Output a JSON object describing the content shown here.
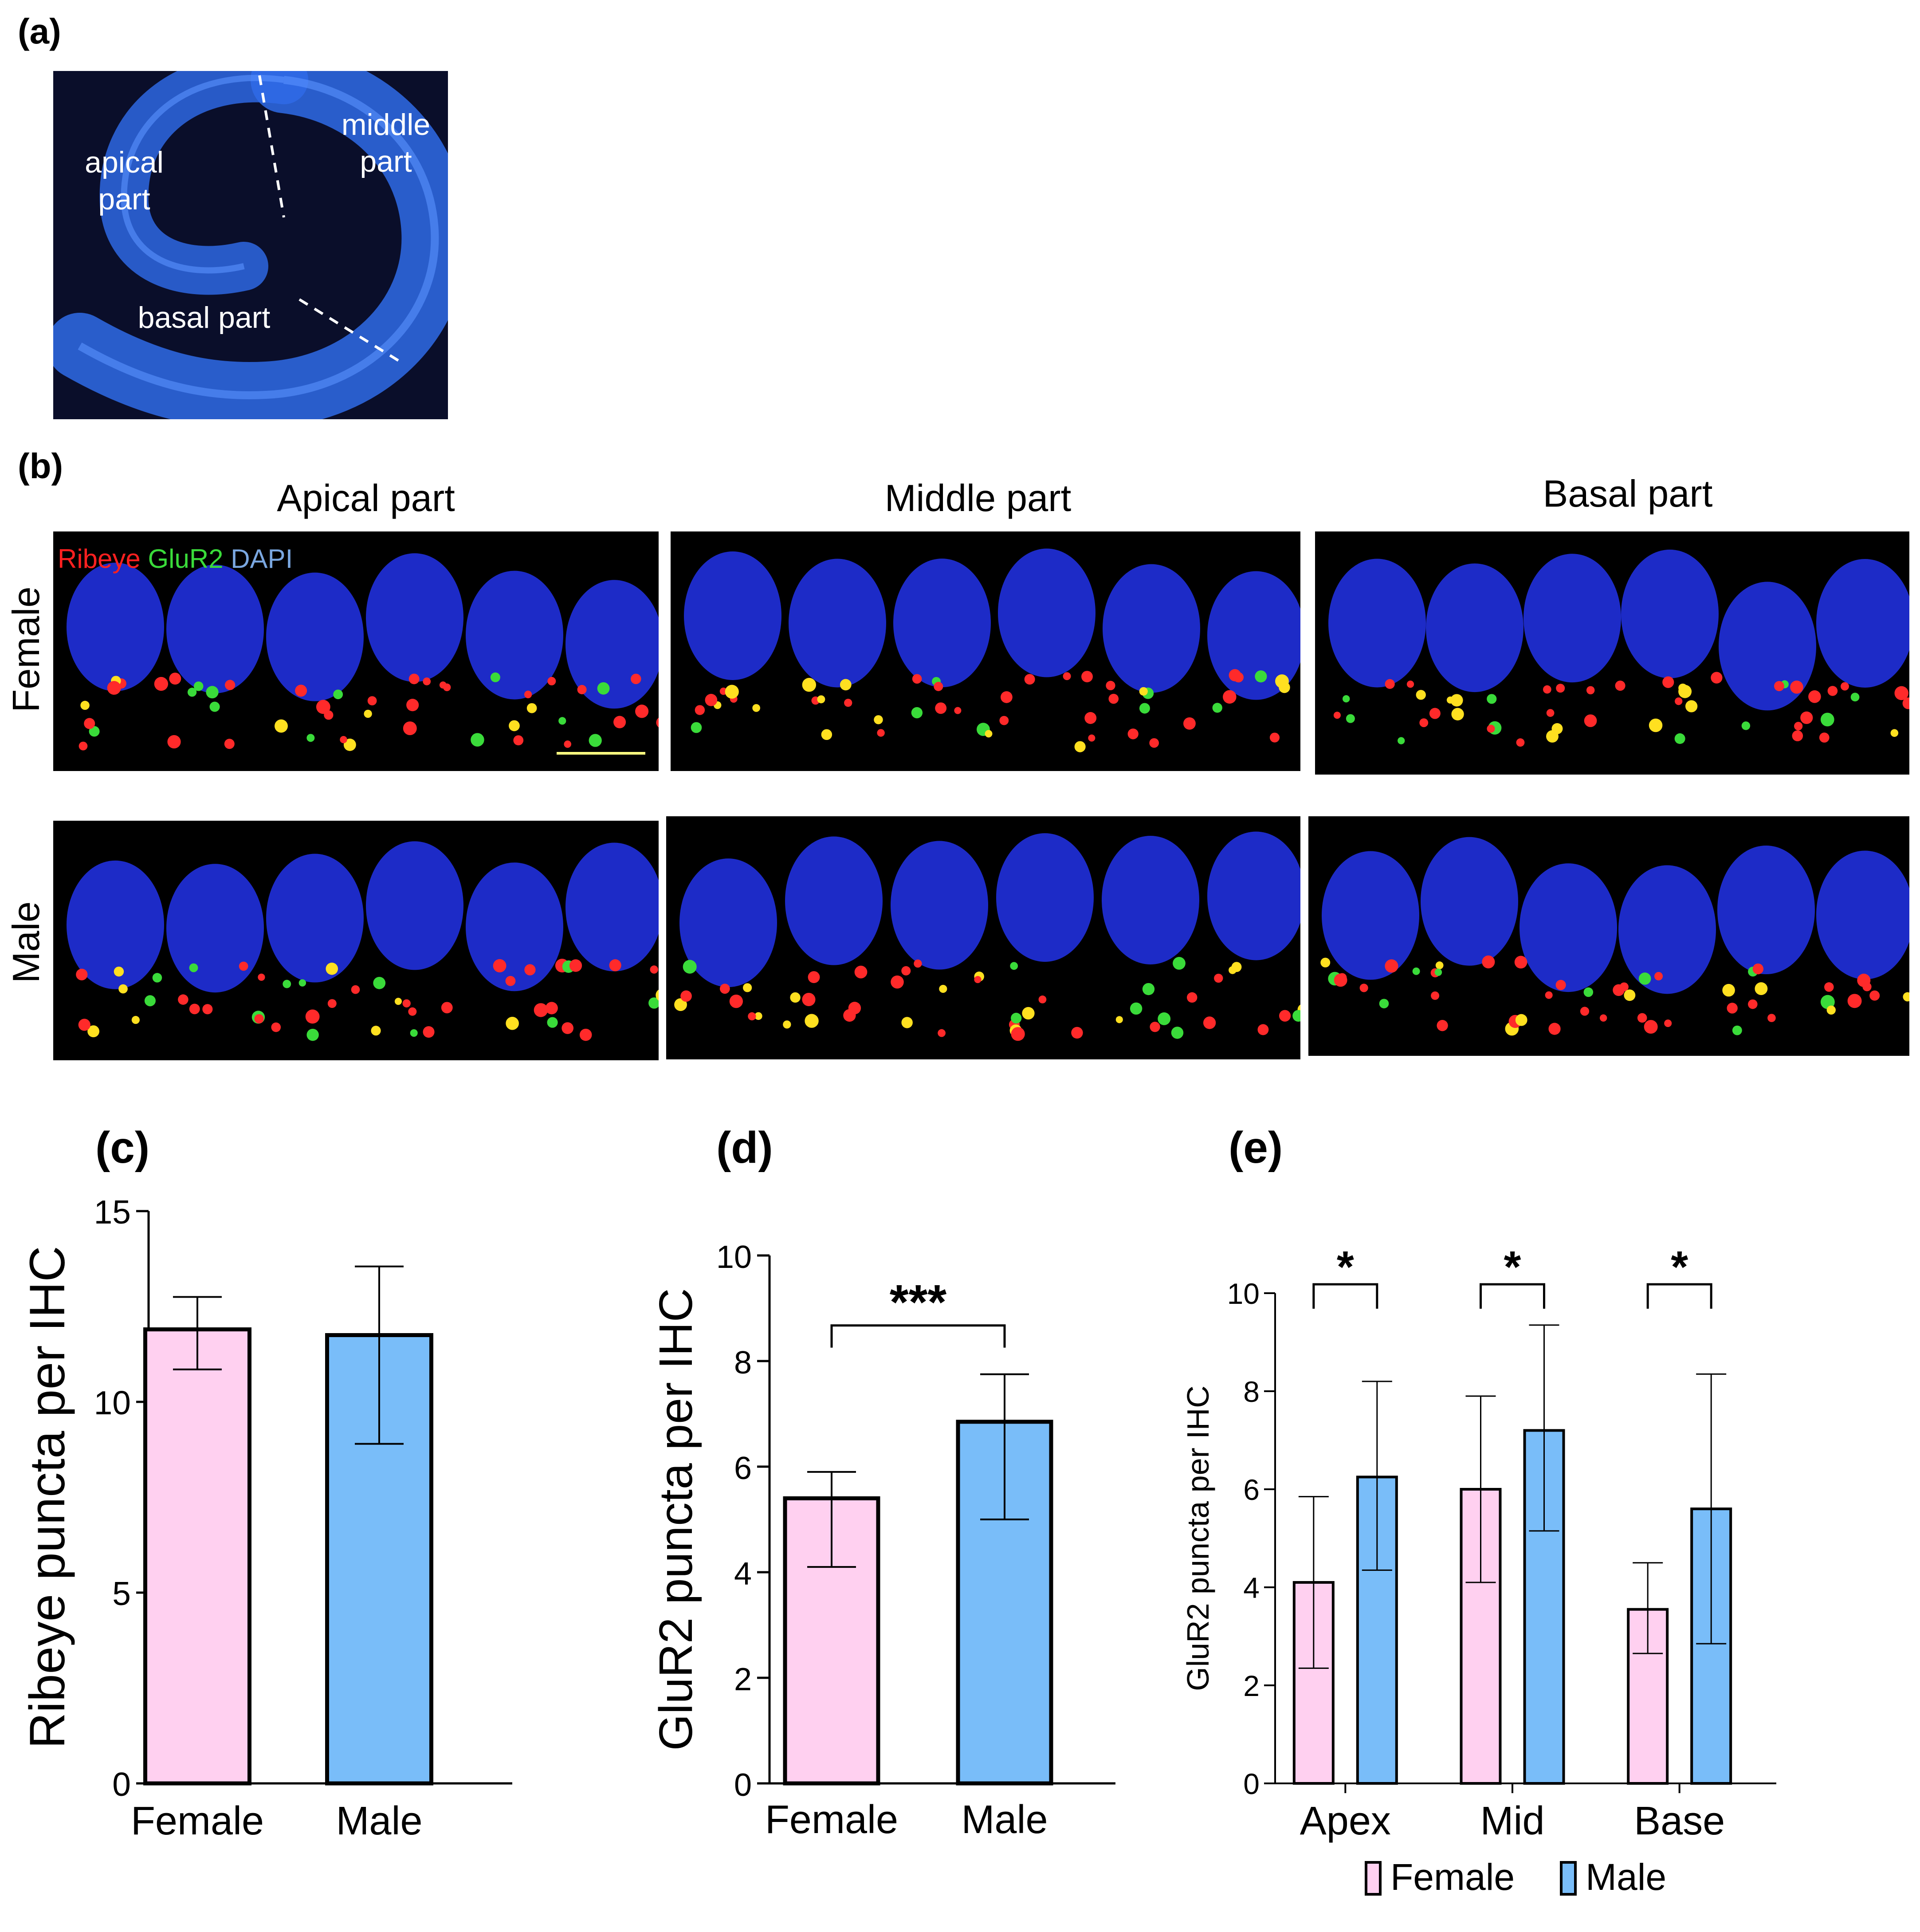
{
  "panel_letters": {
    "a": "(a)",
    "b": "(b)",
    "c": "(c)",
    "d": "(d)",
    "e": "(e)"
  },
  "overview": {
    "labels": {
      "apical": "apical part",
      "middle": "middle part",
      "basal": "basal part"
    },
    "colors": {
      "background": "#0a0e2a",
      "cochlea": "#2f6be8"
    }
  },
  "micrographs": {
    "column_titles": [
      "Apical part",
      "Middle part",
      "Basal part"
    ],
    "row_labels": [
      "Female",
      "Male"
    ],
    "stain_legend": [
      {
        "label": "Ribeye",
        "color": "#ff2020"
      },
      {
        "label": "GluR2",
        "color": "#3adb3a"
      },
      {
        "label": "DAPI",
        "color": "#7aa7e0"
      }
    ],
    "colors": {
      "nucleus": "#1f2fd8",
      "background": "#000000"
    }
  },
  "chart_data": [
    {
      "panel": "(c)",
      "type": "bar",
      "categories": [
        "Female",
        "Male"
      ],
      "values": [
        11.9,
        11.75
      ],
      "errors": [
        [
          10.85,
          12.75
        ],
        [
          8.9,
          13.55
        ]
      ],
      "ylabel": "Ribeye puncta per IHC",
      "xlabel": "",
      "ylim": [
        0,
        15
      ],
      "yticks": [
        0,
        5,
        10,
        15
      ],
      "colors": [
        "#ffd0f0",
        "#79bdf9"
      ],
      "significance": []
    },
    {
      "panel": "(d)",
      "type": "bar",
      "categories": [
        "Female",
        "Male"
      ],
      "values": [
        5.4,
        6.85
      ],
      "errors": [
        [
          4.1,
          5.9
        ],
        [
          5.0,
          7.75
        ]
      ],
      "ylabel": "GluR2 puncta per IHC",
      "xlabel": "",
      "ylim": [
        0,
        10
      ],
      "yticks": [
        0,
        2,
        4,
        6,
        8,
        10
      ],
      "colors": [
        "#ffd0f0",
        "#79bdf9"
      ],
      "significance": [
        "***"
      ]
    },
    {
      "panel": "(e)",
      "type": "bar",
      "categories": [
        "Apex",
        "Mid",
        "Base"
      ],
      "series": [
        {
          "name": "Female",
          "values": [
            4.1,
            6.0,
            3.55
          ],
          "errors": [
            [
              2.35,
              5.85
            ],
            [
              4.1,
              7.9
            ],
            [
              2.65,
              4.5
            ]
          ],
          "color": "#ffd0f0"
        },
        {
          "name": "Male",
          "values": [
            6.25,
            7.2,
            5.6
          ],
          "errors": [
            [
              4.35,
              8.2
            ],
            [
              5.15,
              9.35
            ],
            [
              2.85,
              8.35
            ]
          ],
          "color": "#79bdf9"
        }
      ],
      "ylabel": "GluR2 puncta per IHC",
      "xlabel": "",
      "ylim": [
        0,
        10
      ],
      "yticks": [
        0,
        2,
        4,
        6,
        8,
        10
      ],
      "legend_position": "bottom",
      "significance": [
        "*",
        "*",
        "*"
      ]
    }
  ]
}
